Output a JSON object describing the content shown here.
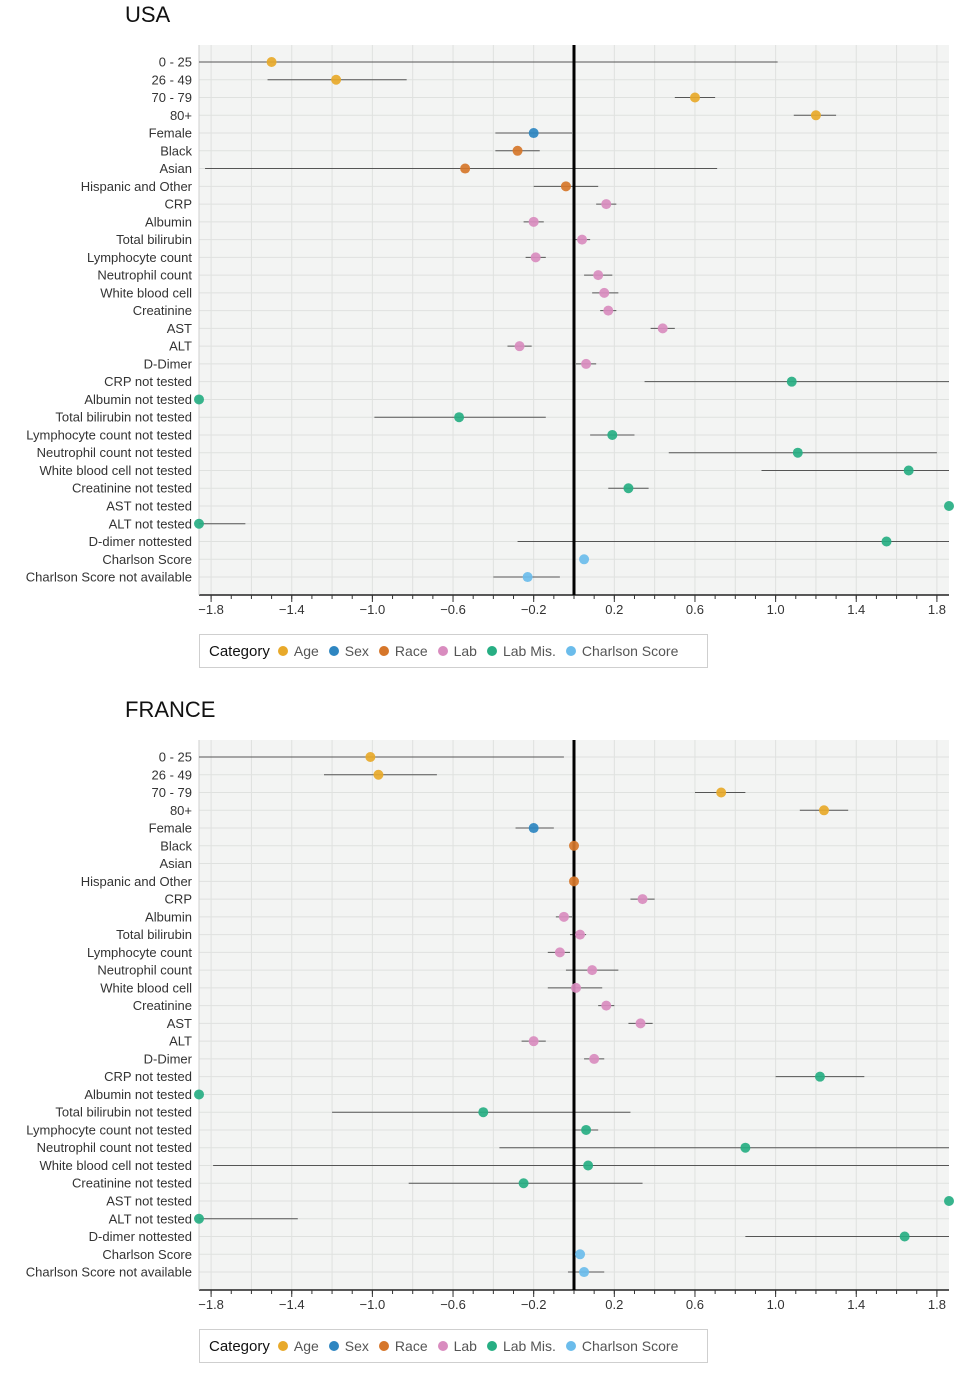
{
  "categories": [
    {
      "name": "Age",
      "color": "#E8A92A"
    },
    {
      "name": "Sex",
      "color": "#2E86C1"
    },
    {
      "name": "Race",
      "color": "#D6762A"
    },
    {
      "name": "Lab",
      "color": "#D98CBF"
    },
    {
      "name": "Lab Mis.",
      "color": "#27AE83"
    },
    {
      "name": "Charlson Score",
      "color": "#6BBCEB"
    }
  ],
  "legend_title": "Category",
  "chart_data": [
    {
      "type": "scatter",
      "title": "USA",
      "xlim": [
        -1.86,
        1.86
      ],
      "xticks": [
        -1.8,
        -1.4,
        -1.0,
        -0.6,
        -0.2,
        0.2,
        0.6,
        1.0,
        1.4,
        1.8
      ],
      "xtick_labels": [
        "−1.8",
        "−1.4",
        "−1.0",
        "−0.6",
        "−0.2",
        "0.2",
        "0.6",
        "1.0",
        "1.4",
        "1.8"
      ],
      "reference_line": 0,
      "grid": true,
      "rows": [
        {
          "label": "0 - 25",
          "category": "Age",
          "value": -1.5,
          "ci": [
            -1.86,
            1.01
          ]
        },
        {
          "label": "26 - 49",
          "category": "Age",
          "value": -1.18,
          "ci": [
            -1.52,
            -0.83
          ]
        },
        {
          "label": "70 - 79",
          "category": "Age",
          "value": 0.6,
          "ci": [
            0.5,
            0.7
          ]
        },
        {
          "label": "80+",
          "category": "Age",
          "value": 1.2,
          "ci": [
            1.09,
            1.3
          ]
        },
        {
          "label": "Female",
          "category": "Sex",
          "value": -0.2,
          "ci": [
            -0.39,
            -0.01
          ]
        },
        {
          "label": "Black",
          "category": "Race",
          "value": -0.28,
          "ci": [
            -0.39,
            -0.17
          ]
        },
        {
          "label": "Asian",
          "category": "Race",
          "value": -0.54,
          "ci": [
            -1.83,
            0.71
          ]
        },
        {
          "label": "Hispanic and Other",
          "category": "Race",
          "value": -0.04,
          "ci": [
            -0.2,
            0.12
          ]
        },
        {
          "label": "CRP",
          "category": "Lab",
          "value": 0.16,
          "ci": [
            0.11,
            0.21
          ]
        },
        {
          "label": "Albumin",
          "category": "Lab",
          "value": -0.2,
          "ci": [
            -0.25,
            -0.15
          ]
        },
        {
          "label": "Total bilirubin",
          "category": "Lab",
          "value": 0.04,
          "ci": [
            0.0,
            0.08
          ]
        },
        {
          "label": "Lymphocyte count",
          "category": "Lab",
          "value": -0.19,
          "ci": [
            -0.24,
            -0.14
          ]
        },
        {
          "label": "Neutrophil count",
          "category": "Lab",
          "value": 0.12,
          "ci": [
            0.05,
            0.19
          ]
        },
        {
          "label": "White blood cell",
          "category": "Lab",
          "value": 0.15,
          "ci": [
            0.09,
            0.22
          ]
        },
        {
          "label": "Creatinine",
          "category": "Lab",
          "value": 0.17,
          "ci": [
            0.13,
            0.21
          ]
        },
        {
          "label": "AST",
          "category": "Lab",
          "value": 0.44,
          "ci": [
            0.38,
            0.5
          ]
        },
        {
          "label": "ALT",
          "category": "Lab",
          "value": -0.27,
          "ci": [
            -0.33,
            -0.21
          ]
        },
        {
          "label": "D-Dimer",
          "category": "Lab",
          "value": 0.06,
          "ci": [
            0.01,
            0.11
          ]
        },
        {
          "label": "CRP not tested",
          "category": "Lab Mis.",
          "value": 1.08,
          "ci": [
            0.35,
            1.86
          ]
        },
        {
          "label": "Albumin not tested",
          "category": "Lab Mis.",
          "value": -1.86,
          "ci": null
        },
        {
          "label": "Total bilirubin not tested",
          "category": "Lab Mis.",
          "value": -0.57,
          "ci": [
            -0.99,
            -0.14
          ]
        },
        {
          "label": "Lymphocyte count not tested",
          "category": "Lab Mis.",
          "value": 0.19,
          "ci": [
            0.08,
            0.3
          ]
        },
        {
          "label": "Neutrophil count not tested",
          "category": "Lab Mis.",
          "value": 1.11,
          "ci": [
            0.47,
            1.8
          ]
        },
        {
          "label": "White blood cell not tested",
          "category": "Lab Mis.",
          "value": 1.66,
          "ci": [
            0.93,
            1.86
          ]
        },
        {
          "label": "Creatinine not tested",
          "category": "Lab Mis.",
          "value": 0.27,
          "ci": [
            0.17,
            0.37
          ]
        },
        {
          "label": "AST not tested",
          "category": "Lab Mis.",
          "value": 1.86,
          "ci": null
        },
        {
          "label": "ALT not tested",
          "category": "Lab Mis.",
          "value": -1.86,
          "ci": [
            -1.86,
            -1.63
          ]
        },
        {
          "label": "D-dimer nottested",
          "category": "Lab Mis.",
          "value": 1.55,
          "ci": [
            -0.28,
            1.86
          ]
        },
        {
          "label": "Charlson Score",
          "category": "Charlson Score",
          "value": 0.05,
          "ci": null
        },
        {
          "label": "Charlson Score not available",
          "category": "Charlson Score",
          "value": -0.23,
          "ci": [
            -0.4,
            -0.07
          ]
        }
      ]
    },
    {
      "type": "scatter",
      "title": "FRANCE",
      "xlim": [
        -1.86,
        1.86
      ],
      "xticks": [
        -1.8,
        -1.4,
        -1.0,
        -0.6,
        -0.2,
        0.2,
        0.6,
        1.0,
        1.4,
        1.8
      ],
      "xtick_labels": [
        "−1.8",
        "−1.4",
        "−1.0",
        "−0.6",
        "−0.2",
        "0.2",
        "0.6",
        "1.0",
        "1.4",
        "1.8"
      ],
      "reference_line": 0,
      "grid": true,
      "rows": [
        {
          "label": "0 - 25",
          "category": "Age",
          "value": -1.01,
          "ci": [
            -1.86,
            -0.05
          ]
        },
        {
          "label": "26 - 49",
          "category": "Age",
          "value": -0.97,
          "ci": [
            -1.24,
            -0.68
          ]
        },
        {
          "label": "70 - 79",
          "category": "Age",
          "value": 0.73,
          "ci": [
            0.6,
            0.85
          ]
        },
        {
          "label": "80+",
          "category": "Age",
          "value": 1.24,
          "ci": [
            1.12,
            1.36
          ]
        },
        {
          "label": "Female",
          "category": "Sex",
          "value": -0.2,
          "ci": [
            -0.29,
            -0.1
          ]
        },
        {
          "label": "Black",
          "category": "Race",
          "value": 0.0,
          "ci": null
        },
        {
          "label": "Asian",
          "category": "Race",
          "value": null,
          "ci": null
        },
        {
          "label": "Hispanic and Other",
          "category": "Race",
          "value": 0.0,
          "ci": null
        },
        {
          "label": "CRP",
          "category": "Lab",
          "value": 0.34,
          "ci": [
            0.28,
            0.4
          ]
        },
        {
          "label": "Albumin",
          "category": "Lab",
          "value": -0.05,
          "ci": [
            -0.09,
            -0.01
          ]
        },
        {
          "label": "Total bilirubin",
          "category": "Lab",
          "value": 0.03,
          "ci": [
            -0.02,
            0.06
          ]
        },
        {
          "label": "Lymphocyte count",
          "category": "Lab",
          "value": -0.07,
          "ci": [
            -0.13,
            -0.02
          ]
        },
        {
          "label": "Neutrophil count",
          "category": "Lab",
          "value": 0.09,
          "ci": [
            -0.04,
            0.22
          ]
        },
        {
          "label": "White blood cell",
          "category": "Lab",
          "value": 0.01,
          "ci": [
            -0.13,
            0.14
          ]
        },
        {
          "label": "Creatinine",
          "category": "Lab",
          "value": 0.16,
          "ci": [
            0.12,
            0.2
          ]
        },
        {
          "label": "AST",
          "category": "Lab",
          "value": 0.33,
          "ci": [
            0.27,
            0.39
          ]
        },
        {
          "label": "ALT",
          "category": "Lab",
          "value": -0.2,
          "ci": [
            -0.26,
            -0.14
          ]
        },
        {
          "label": "D-Dimer",
          "category": "Lab",
          "value": 0.1,
          "ci": [
            0.05,
            0.15
          ]
        },
        {
          "label": "CRP not tested",
          "category": "Lab Mis.",
          "value": 1.22,
          "ci": [
            1.0,
            1.44
          ]
        },
        {
          "label": "Albumin not tested",
          "category": "Lab Mis.",
          "value": -1.86,
          "ci": null
        },
        {
          "label": "Total bilirubin not tested",
          "category": "Lab Mis.",
          "value": -0.45,
          "ci": [
            -1.2,
            0.28
          ]
        },
        {
          "label": "Lymphocyte count not tested",
          "category": "Lab Mis.",
          "value": 0.06,
          "ci": [
            0.0,
            0.12
          ]
        },
        {
          "label": "Neutrophil count not tested",
          "category": "Lab Mis.",
          "value": 0.85,
          "ci": [
            -0.37,
            1.86
          ]
        },
        {
          "label": "White blood cell not tested",
          "category": "Lab Mis.",
          "value": 0.07,
          "ci": [
            -1.79,
            1.86
          ]
        },
        {
          "label": "Creatinine not tested",
          "category": "Lab Mis.",
          "value": -0.25,
          "ci": [
            -0.82,
            0.34
          ]
        },
        {
          "label": "AST not tested",
          "category": "Lab Mis.",
          "value": 1.86,
          "ci": null
        },
        {
          "label": "ALT not tested",
          "category": "Lab Mis.",
          "value": -1.86,
          "ci": [
            -1.86,
            -1.37
          ]
        },
        {
          "label": "D-dimer nottested",
          "category": "Lab Mis.",
          "value": 1.64,
          "ci": [
            0.85,
            1.86
          ]
        },
        {
          "label": "Charlson Score",
          "category": "Charlson Score",
          "value": 0.03,
          "ci": null
        },
        {
          "label": "Charlson Score not available",
          "category": "Charlson Score",
          "value": 0.05,
          "ci": [
            -0.03,
            0.15
          ]
        }
      ]
    }
  ]
}
